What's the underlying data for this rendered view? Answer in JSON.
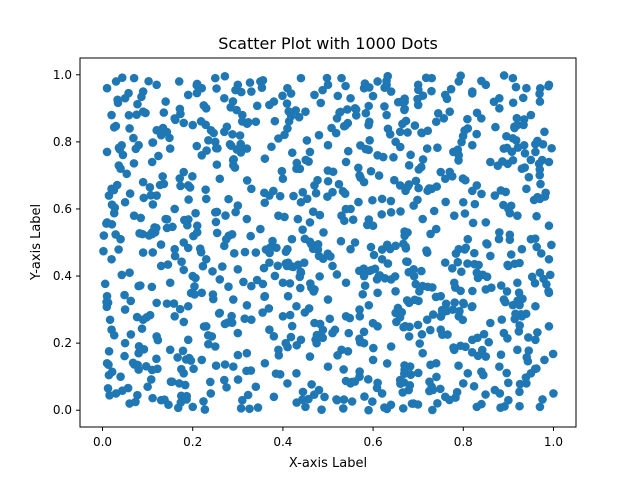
{
  "chart_data": {
    "type": "scatter",
    "title": "Scatter Plot with 1000 Dots",
    "xlabel": "X-axis Label",
    "ylabel": "Y-axis Label",
    "xlim": [
      -0.05,
      1.05
    ],
    "ylim": [
      -0.05,
      1.05
    ],
    "xticks": [
      0.0,
      0.2,
      0.4,
      0.6,
      0.8,
      1.0
    ],
    "xtick_labels": [
      "0.0",
      "0.2",
      "0.4",
      "0.6",
      "0.8",
      "1.0"
    ],
    "yticks": [
      0.0,
      0.2,
      0.4,
      0.6,
      0.8,
      1.0
    ],
    "ytick_labels": [
      "0.0",
      "0.2",
      "0.4",
      "0.6",
      "0.8",
      "1.0"
    ],
    "grid": false,
    "point_color": "#1f77b4",
    "point_count": 1000,
    "series": [
      {
        "points": [
          [
            0.01,
            0.96
          ],
          [
            0.03,
            0.98
          ],
          [
            0.05,
            0.93
          ],
          [
            0.07,
            0.99
          ],
          [
            0.09,
            0.95
          ],
          [
            0.12,
            0.97
          ],
          [
            0.14,
            0.92
          ],
          [
            0.17,
            0.98
          ],
          [
            0.19,
            0.94
          ],
          [
            0.22,
            0.96
          ],
          [
            0.25,
            0.99
          ],
          [
            0.27,
            0.93
          ],
          [
            0.3,
            0.97
          ],
          [
            0.33,
            0.95
          ],
          [
            0.35,
            0.98
          ],
          [
            0.38,
            0.92
          ],
          [
            0.41,
            0.96
          ],
          [
            0.44,
            0.99
          ],
          [
            0.47,
            0.94
          ],
          [
            0.5,
            0.97
          ],
          [
            0.53,
            0.99
          ],
          [
            0.55,
            0.93
          ],
          [
            0.58,
            0.96
          ],
          [
            0.61,
            0.98
          ],
          [
            0.64,
            0.95
          ],
          [
            0.67,
            0.92
          ],
          [
            0.7,
            0.97
          ],
          [
            0.73,
            0.99
          ],
          [
            0.76,
            0.94
          ],
          [
            0.79,
            0.98
          ],
          [
            0.82,
            0.95
          ],
          [
            0.85,
            0.97
          ],
          [
            0.88,
            0.93
          ],
          [
            0.91,
            0.99
          ],
          [
            0.94,
            0.96
          ],
          [
            0.97,
            0.92
          ],
          [
            0.99,
            0.97
          ],
          [
            0.02,
            0.88
          ],
          [
            0.06,
            0.84
          ],
          [
            0.09,
            0.89
          ],
          [
            0.13,
            0.82
          ],
          [
            0.16,
            0.87
          ],
          [
            0.2,
            0.85
          ],
          [
            0.23,
            0.9
          ],
          [
            0.27,
            0.83
          ],
          [
            0.31,
            0.88
          ],
          [
            0.34,
            0.86
          ],
          [
            0.37,
            0.91
          ],
          [
            0.41,
            0.84
          ],
          [
            0.45,
            0.89
          ],
          [
            0.48,
            0.82
          ],
          [
            0.52,
            0.87
          ],
          [
            0.56,
            0.9
          ],
          [
            0.59,
            0.85
          ],
          [
            0.63,
            0.88
          ],
          [
            0.66,
            0.83
          ],
          [
            0.7,
            0.91
          ],
          [
            0.74,
            0.86
          ],
          [
            0.77,
            0.89
          ],
          [
            0.81,
            0.84
          ],
          [
            0.84,
            0.87
          ],
          [
            0.88,
            0.9
          ],
          [
            0.92,
            0.85
          ],
          [
            0.95,
            0.88
          ],
          [
            0.98,
            0.83
          ],
          [
            0.01,
            0.77
          ],
          [
            0.04,
            0.72
          ],
          [
            0.08,
            0.79
          ],
          [
            0.11,
            0.74
          ],
          [
            0.15,
            0.78
          ],
          [
            0.18,
            0.71
          ],
          [
            0.22,
            0.76
          ],
          [
            0.25,
            0.8
          ],
          [
            0.29,
            0.73
          ],
          [
            0.32,
            0.78
          ],
          [
            0.36,
            0.75
          ],
          [
            0.39,
            0.81
          ],
          [
            0.43,
            0.72
          ],
          [
            0.46,
            0.77
          ],
          [
            0.5,
            0.79
          ],
          [
            0.54,
            0.74
          ],
          [
            0.57,
            0.7
          ],
          [
            0.61,
            0.76
          ],
          [
            0.65,
            0.8
          ],
          [
            0.68,
            0.73
          ],
          [
            0.72,
            0.78
          ],
          [
            0.75,
            0.71
          ],
          [
            0.79,
            0.76
          ],
          [
            0.82,
            0.79
          ],
          [
            0.86,
            0.74
          ],
          [
            0.89,
            0.78
          ],
          [
            0.93,
            0.72
          ],
          [
            0.96,
            0.77
          ],
          [
            0.99,
            0.74
          ],
          [
            0.02,
            0.66
          ],
          [
            0.05,
            0.62
          ],
          [
            0.09,
            0.68
          ],
          [
            0.12,
            0.64
          ],
          [
            0.16,
            0.6
          ],
          [
            0.19,
            0.67
          ],
          [
            0.23,
            0.63
          ],
          [
            0.26,
            0.69
          ],
          [
            0.3,
            0.61
          ],
          [
            0.33,
            0.66
          ],
          [
            0.37,
            0.64
          ],
          [
            0.4,
            0.69
          ],
          [
            0.44,
            0.62
          ],
          [
            0.47,
            0.67
          ],
          [
            0.51,
            0.65
          ],
          [
            0.55,
            0.6
          ],
          [
            0.58,
            0.68
          ],
          [
            0.62,
            0.63
          ],
          [
            0.66,
            0.67
          ],
          [
            0.69,
            0.61
          ],
          [
            0.73,
            0.66
          ],
          [
            0.76,
            0.69
          ],
          [
            0.8,
            0.62
          ],
          [
            0.83,
            0.67
          ],
          [
            0.87,
            0.64
          ],
          [
            0.9,
            0.6
          ],
          [
            0.94,
            0.66
          ],
          [
            0.97,
            0.63
          ],
          [
            0.01,
            0.56
          ],
          [
            0.04,
            0.51
          ],
          [
            0.07,
            0.58
          ],
          [
            0.11,
            0.53
          ],
          [
            0.14,
            0.57
          ],
          [
            0.18,
            0.5
          ],
          [
            0.21,
            0.55
          ],
          [
            0.25,
            0.59
          ],
          [
            0.28,
            0.52
          ],
          [
            0.32,
            0.57
          ],
          [
            0.35,
            0.54
          ],
          [
            0.39,
            0.58
          ],
          [
            0.42,
            0.51
          ],
          [
            0.46,
            0.56
          ],
          [
            0.49,
            0.53
          ],
          [
            0.53,
            0.58
          ],
          [
            0.56,
            0.5
          ],
          [
            0.6,
            0.55
          ],
          [
            0.64,
            0.59
          ],
          [
            0.67,
            0.52
          ],
          [
            0.71,
            0.57
          ],
          [
            0.74,
            0.54
          ],
          [
            0.78,
            0.58
          ],
          [
            0.81,
            0.51
          ],
          [
            0.85,
            0.56
          ],
          [
            0.88,
            0.53
          ],
          [
            0.92,
            0.58
          ],
          [
            0.95,
            0.51
          ],
          [
            0.99,
            0.55
          ],
          [
            0.02,
            0.45
          ],
          [
            0.06,
            0.41
          ],
          [
            0.09,
            0.47
          ],
          [
            0.13,
            0.43
          ],
          [
            0.16,
            0.48
          ],
          [
            0.2,
            0.4
          ],
          [
            0.23,
            0.45
          ],
          [
            0.27,
            0.49
          ],
          [
            0.3,
            0.42
          ],
          [
            0.34,
            0.47
          ],
          [
            0.37,
            0.44
          ],
          [
            0.41,
            0.48
          ],
          [
            0.44,
            0.41
          ],
          [
            0.48,
            0.46
          ],
          [
            0.51,
            0.43
          ],
          [
            0.55,
            0.48
          ],
          [
            0.58,
            0.4
          ],
          [
            0.62,
            0.45
          ],
          [
            0.65,
            0.49
          ],
          [
            0.69,
            0.42
          ],
          [
            0.72,
            0.47
          ],
          [
            0.76,
            0.44
          ],
          [
            0.79,
            0.48
          ],
          [
            0.83,
            0.41
          ],
          [
            0.86,
            0.46
          ],
          [
            0.9,
            0.43
          ],
          [
            0.93,
            0.48
          ],
          [
            0.97,
            0.41
          ],
          [
            0.99,
            0.45
          ],
          [
            0.01,
            0.34
          ],
          [
            0.05,
            0.3
          ],
          [
            0.08,
            0.37
          ],
          [
            0.12,
            0.32
          ],
          [
            0.15,
            0.38
          ],
          [
            0.19,
            0.31
          ],
          [
            0.22,
            0.35
          ],
          [
            0.26,
            0.39
          ],
          [
            0.29,
            0.33
          ],
          [
            0.33,
            0.37
          ],
          [
            0.36,
            0.34
          ],
          [
            0.4,
            0.38
          ],
          [
            0.43,
            0.31
          ],
          [
            0.47,
            0.36
          ],
          [
            0.5,
            0.33
          ],
          [
            0.54,
            0.38
          ],
          [
            0.57,
            0.3
          ],
          [
            0.61,
            0.35
          ],
          [
            0.64,
            0.39
          ],
          [
            0.68,
            0.32
          ],
          [
            0.71,
            0.37
          ],
          [
            0.75,
            0.34
          ],
          [
            0.78,
            0.38
          ],
          [
            0.82,
            0.31
          ],
          [
            0.85,
            0.36
          ],
          [
            0.89,
            0.33
          ],
          [
            0.92,
            0.38
          ],
          [
            0.96,
            0.31
          ],
          [
            0.99,
            0.35
          ],
          [
            0.02,
            0.24
          ],
          [
            0.05,
            0.2
          ],
          [
            0.09,
            0.27
          ],
          [
            0.12,
            0.22
          ],
          [
            0.16,
            0.28
          ],
          [
            0.19,
            0.21
          ],
          [
            0.23,
            0.25
          ],
          [
            0.26,
            0.29
          ],
          [
            0.3,
            0.23
          ],
          [
            0.33,
            0.27
          ],
          [
            0.37,
            0.24
          ],
          [
            0.4,
            0.28
          ],
          [
            0.44,
            0.21
          ],
          [
            0.47,
            0.26
          ],
          [
            0.51,
            0.23
          ],
          [
            0.54,
            0.28
          ],
          [
            0.58,
            0.2
          ],
          [
            0.61,
            0.25
          ],
          [
            0.65,
            0.29
          ],
          [
            0.68,
            0.22
          ],
          [
            0.72,
            0.27
          ],
          [
            0.75,
            0.24
          ],
          [
            0.79,
            0.28
          ],
          [
            0.82,
            0.21
          ],
          [
            0.86,
            0.26
          ],
          [
            0.89,
            0.23
          ],
          [
            0.93,
            0.28
          ],
          [
            0.96,
            0.21
          ],
          [
            0.99,
            0.25
          ],
          [
            0.01,
            0.14
          ],
          [
            0.04,
            0.1
          ],
          [
            0.08,
            0.17
          ],
          [
            0.11,
            0.12
          ],
          [
            0.15,
            0.18
          ],
          [
            0.18,
            0.11
          ],
          [
            0.22,
            0.15
          ],
          [
            0.25,
            0.19
          ],
          [
            0.29,
            0.13
          ],
          [
            0.32,
            0.17
          ],
          [
            0.36,
            0.14
          ],
          [
            0.39,
            0.18
          ],
          [
            0.43,
            0.11
          ],
          [
            0.46,
            0.16
          ],
          [
            0.5,
            0.13
          ],
          [
            0.53,
            0.18
          ],
          [
            0.57,
            0.1
          ],
          [
            0.6,
            0.15
          ],
          [
            0.64,
            0.19
          ],
          [
            0.67,
            0.12
          ],
          [
            0.71,
            0.17
          ],
          [
            0.74,
            0.14
          ],
          [
            0.78,
            0.18
          ],
          [
            0.81,
            0.11
          ],
          [
            0.85,
            0.16
          ],
          [
            0.88,
            0.13
          ],
          [
            0.92,
            0.18
          ],
          [
            0.95,
            0.11
          ],
          [
            0.98,
            0.15
          ],
          [
            0.03,
            0.05
          ],
          [
            0.06,
            0.02
          ],
          [
            0.1,
            0.07
          ],
          [
            0.13,
            0.03
          ],
          [
            0.17,
            0.08
          ],
          [
            0.2,
            0.01
          ],
          [
            0.24,
            0.05
          ],
          [
            0.27,
            0.09
          ],
          [
            0.31,
            0.03
          ],
          [
            0.34,
            0.07
          ],
          [
            0.38,
            0.04
          ],
          [
            0.41,
            0.08
          ],
          [
            0.45,
            0.01
          ],
          [
            0.48,
            0.06
          ],
          [
            0.52,
            0.03
          ],
          [
            0.55,
            0.08
          ],
          [
            0.59,
            0.0
          ],
          [
            0.62,
            0.05
          ],
          [
            0.66,
            0.09
          ],
          [
            0.69,
            0.02
          ],
          [
            0.73,
            0.07
          ],
          [
            0.76,
            0.04
          ],
          [
            0.8,
            0.08
          ],
          [
            0.83,
            0.01
          ],
          [
            0.87,
            0.06
          ],
          [
            0.9,
            0.03
          ],
          [
            0.94,
            0.08
          ],
          [
            0.97,
            0.01
          ],
          [
            1.0,
            0.05
          ]
        ]
      }
    ]
  }
}
